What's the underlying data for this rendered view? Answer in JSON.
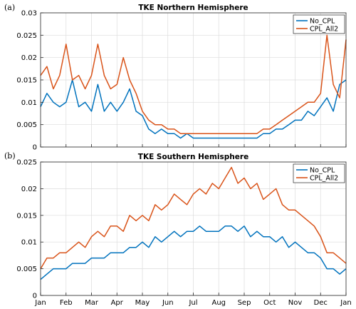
{
  "chart_data": [
    {
      "type": "line",
      "panel_letter": "(a)",
      "title": "TKE Northern Hemisphere",
      "ylim": [
        0,
        0.03
      ],
      "yticks": [
        "0",
        "0.005",
        "0.01",
        "0.015",
        "0.02",
        "0.025",
        "0.03"
      ],
      "x_tick_labels": [],
      "legend_position": "top-right",
      "grid": true,
      "x_axis_months": [
        "Jan",
        "Feb",
        "Mar",
        "Apr",
        "May",
        "Jun",
        "Jul",
        "Aug",
        "Sep",
        "Oct",
        "Nov",
        "Dec",
        "Jan"
      ],
      "series": [
        {
          "name": "No_CPL",
          "color": "#0072BD",
          "x": [
            0.0,
            0.25,
            0.5,
            0.75,
            1.0,
            1.25,
            1.5,
            1.75,
            2.0,
            2.25,
            2.5,
            2.75,
            3.0,
            3.25,
            3.5,
            3.75,
            4.0,
            4.25,
            4.5,
            4.75,
            5.0,
            5.25,
            5.5,
            5.75,
            6.0,
            6.25,
            6.5,
            6.75,
            7.0,
            7.25,
            7.5,
            7.75,
            8.0,
            8.25,
            8.5,
            8.75,
            9.0,
            9.25,
            9.5,
            9.75,
            10.0,
            10.25,
            10.5,
            10.75,
            11.0,
            11.25,
            11.5,
            11.75,
            12.0
          ],
          "values": [
            0.009,
            0.012,
            0.01,
            0.009,
            0.01,
            0.015,
            0.009,
            0.01,
            0.008,
            0.014,
            0.008,
            0.01,
            0.008,
            0.01,
            0.013,
            0.008,
            0.007,
            0.004,
            0.003,
            0.004,
            0.003,
            0.003,
            0.002,
            0.003,
            0.002,
            0.002,
            0.002,
            0.002,
            0.002,
            0.002,
            0.002,
            0.002,
            0.002,
            0.002,
            0.002,
            0.003,
            0.003,
            0.004,
            0.004,
            0.005,
            0.006,
            0.006,
            0.008,
            0.007,
            0.009,
            0.011,
            0.008,
            0.014,
            0.015
          ]
        },
        {
          "name": "CPL_All2",
          "color": "#D95319",
          "x": [
            0.0,
            0.25,
            0.5,
            0.75,
            1.0,
            1.25,
            1.5,
            1.75,
            2.0,
            2.25,
            2.5,
            2.75,
            3.0,
            3.25,
            3.5,
            3.75,
            4.0,
            4.25,
            4.5,
            4.75,
            5.0,
            5.25,
            5.5,
            5.75,
            6.0,
            6.25,
            6.5,
            6.75,
            7.0,
            7.25,
            7.5,
            7.75,
            8.0,
            8.25,
            8.5,
            8.75,
            9.0,
            9.25,
            9.5,
            9.75,
            10.0,
            10.25,
            10.5,
            10.75,
            11.0,
            11.25,
            11.5,
            11.75,
            12.0
          ],
          "values": [
            0.016,
            0.018,
            0.013,
            0.016,
            0.023,
            0.015,
            0.016,
            0.013,
            0.016,
            0.023,
            0.016,
            0.013,
            0.014,
            0.02,
            0.015,
            0.012,
            0.008,
            0.006,
            0.005,
            0.005,
            0.004,
            0.004,
            0.003,
            0.003,
            0.003,
            0.003,
            0.003,
            0.003,
            0.003,
            0.003,
            0.003,
            0.003,
            0.003,
            0.003,
            0.003,
            0.004,
            0.004,
            0.005,
            0.006,
            0.007,
            0.008,
            0.009,
            0.01,
            0.01,
            0.012,
            0.025,
            0.014,
            0.011,
            0.024
          ]
        }
      ]
    },
    {
      "type": "line",
      "panel_letter": "(b)",
      "title": "TKE Southern Hemisphere",
      "ylim": [
        0,
        0.025
      ],
      "yticks": [
        "0",
        "0.005",
        "0.01",
        "0.015",
        "0.02",
        "0.025"
      ],
      "x_tick_labels": [
        "Jan",
        "Feb",
        "Mar",
        "Apr",
        "May",
        "Jun",
        "Jul",
        "Aug",
        "Sep",
        "Oct",
        "Nov",
        "Dec",
        "Jan"
      ],
      "legend_position": "top-right",
      "grid": true,
      "series": [
        {
          "name": "No_CPL",
          "color": "#0072BD",
          "x": [
            0.0,
            0.25,
            0.5,
            0.75,
            1.0,
            1.25,
            1.5,
            1.75,
            2.0,
            2.25,
            2.5,
            2.75,
            3.0,
            3.25,
            3.5,
            3.75,
            4.0,
            4.25,
            4.5,
            4.75,
            5.0,
            5.25,
            5.5,
            5.75,
            6.0,
            6.25,
            6.5,
            6.75,
            7.0,
            7.25,
            7.5,
            7.75,
            8.0,
            8.25,
            8.5,
            8.75,
            9.0,
            9.25,
            9.5,
            9.75,
            10.0,
            10.25,
            10.5,
            10.75,
            11.0,
            11.25,
            11.5,
            11.75,
            12.0
          ],
          "values": [
            0.003,
            0.004,
            0.005,
            0.005,
            0.005,
            0.006,
            0.006,
            0.006,
            0.007,
            0.007,
            0.007,
            0.008,
            0.008,
            0.008,
            0.009,
            0.009,
            0.01,
            0.009,
            0.011,
            0.01,
            0.011,
            0.012,
            0.011,
            0.012,
            0.012,
            0.013,
            0.012,
            0.012,
            0.012,
            0.013,
            0.013,
            0.012,
            0.013,
            0.011,
            0.012,
            0.011,
            0.011,
            0.01,
            0.011,
            0.009,
            0.01,
            0.009,
            0.008,
            0.008,
            0.007,
            0.005,
            0.005,
            0.004,
            0.005
          ]
        },
        {
          "name": "CPL_All2",
          "color": "#D95319",
          "x": [
            0.0,
            0.25,
            0.5,
            0.75,
            1.0,
            1.25,
            1.5,
            1.75,
            2.0,
            2.25,
            2.5,
            2.75,
            3.0,
            3.25,
            3.5,
            3.75,
            4.0,
            4.25,
            4.5,
            4.75,
            5.0,
            5.25,
            5.5,
            5.75,
            6.0,
            6.25,
            6.5,
            6.75,
            7.0,
            7.25,
            7.5,
            7.75,
            8.0,
            8.25,
            8.5,
            8.75,
            9.0,
            9.25,
            9.5,
            9.75,
            10.0,
            10.25,
            10.5,
            10.75,
            11.0,
            11.25,
            11.5,
            11.75,
            12.0
          ],
          "values": [
            0.005,
            0.007,
            0.007,
            0.008,
            0.008,
            0.009,
            0.01,
            0.009,
            0.011,
            0.012,
            0.011,
            0.013,
            0.013,
            0.012,
            0.015,
            0.014,
            0.015,
            0.014,
            0.017,
            0.016,
            0.017,
            0.019,
            0.018,
            0.017,
            0.019,
            0.02,
            0.019,
            0.021,
            0.02,
            0.022,
            0.024,
            0.021,
            0.022,
            0.02,
            0.021,
            0.018,
            0.019,
            0.02,
            0.017,
            0.016,
            0.016,
            0.015,
            0.014,
            0.013,
            0.011,
            0.008,
            0.008,
            0.007,
            0.006
          ]
        }
      ]
    }
  ]
}
